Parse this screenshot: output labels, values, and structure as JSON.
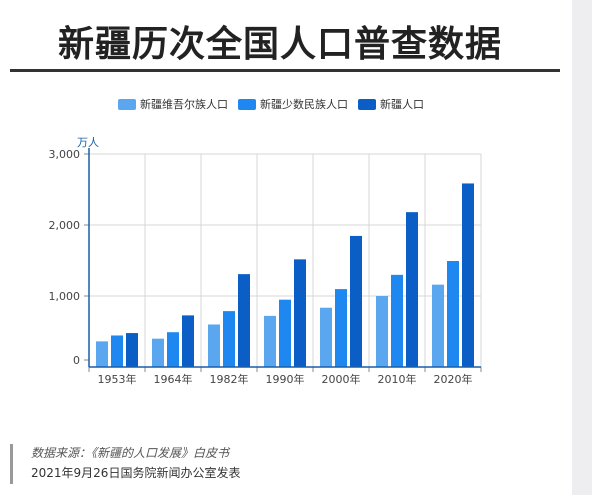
{
  "title": "新疆历次全国人口普查数据",
  "legend": [
    {
      "label": "新疆维吾尔族人口",
      "color": "#5aa7f0"
    },
    {
      "label": "新疆少数民族人口",
      "color": "#1e88f0"
    },
    {
      "label": "新疆人口",
      "color": "#0a5ec6"
    }
  ],
  "chart_data": {
    "type": "bar",
    "ylabel": "万人",
    "ylim": [
      0,
      3000
    ],
    "yticks": [
      "0",
      "1,000",
      "2,000",
      "3,000"
    ],
    "grid": true,
    "legend_position": "top",
    "categories": [
      "1953年",
      "1964年",
      "1982年",
      "1990年",
      "2000年",
      "2010年",
      "2020年"
    ],
    "series": [
      {
        "name": "新疆维吾尔族人口",
        "color": "#5aa7f0",
        "values": [
          361,
          399,
          599,
          720,
          835,
          1000,
          1160
        ]
      },
      {
        "name": "新疆少数民族人口",
        "color": "#1e88f0",
        "values": [
          444,
          490,
          787,
          948,
          1097,
          1298,
          1493
        ]
      },
      {
        "name": "新疆人口",
        "color": "#0a5ec6",
        "values": [
          478,
          727,
          1308,
          1516,
          1846,
          2181,
          2585
        ]
      }
    ]
  },
  "footer": {
    "source": "数据来源：《新疆的人口发展》白皮书",
    "release": "2021年9月26日国务院新闻办公室发表"
  }
}
